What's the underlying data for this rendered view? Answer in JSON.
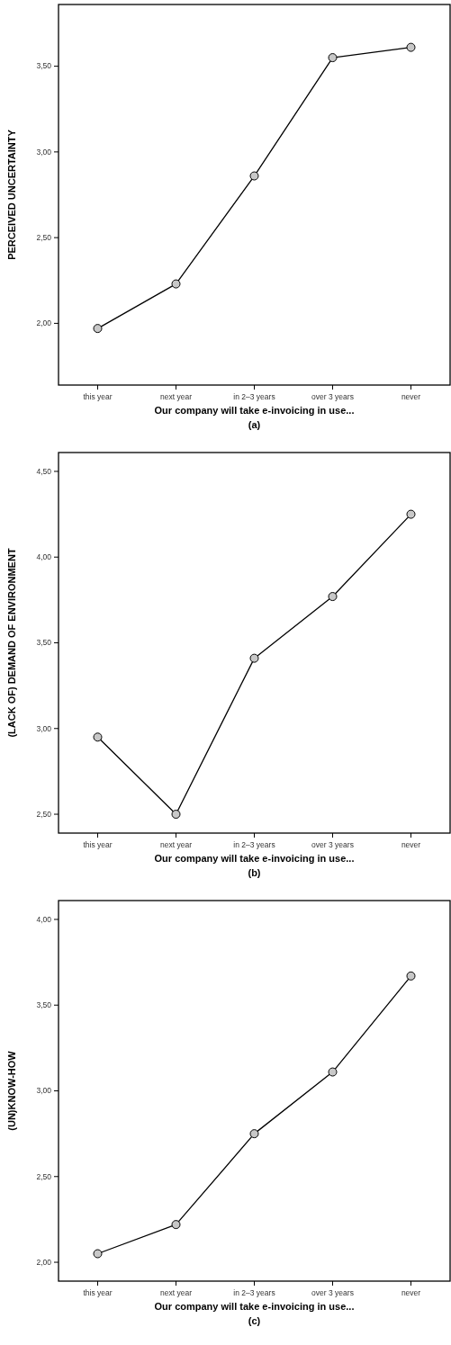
{
  "chart_data": [
    {
      "type": "line",
      "xlabel": "Our company will take e-invoicing in use...",
      "ylabel": "PERCEIVED UNCERTAINTY",
      "annotations": [
        "(a)"
      ],
      "categories": [
        "this year",
        "next year",
        "in 2–3 years",
        "over 3 years",
        "never"
      ],
      "marker": "circle",
      "line_style": "solid",
      "series": [
        {
          "color": "#000000",
          "values": [
            1.97,
            2.23,
            2.86,
            3.55,
            3.61
          ]
        }
      ],
      "ylim": [
        1.64,
        3.86
      ],
      "yticks": [
        {
          "value": 2,
          "label": "2,00"
        },
        {
          "value": 2.5,
          "label": "2,50"
        },
        {
          "value": 3,
          "label": "3,00"
        },
        {
          "value": 3.5,
          "label": "3,50"
        }
      ]
    },
    {
      "type": "line",
      "xlabel": "Our company will take e-invoicing in use...",
      "ylabel": "(LACK OF) DEMAND OF ENVIRONMENT",
      "annotations": [
        "(b)"
      ],
      "categories": [
        "this year",
        "next year",
        "in 2–3 years",
        "over 3 years",
        "never"
      ],
      "marker": "circle",
      "line_style": "solid",
      "series": [
        {
          "color": "#000000",
          "values": [
            2.95,
            2.5,
            3.41,
            3.77,
            4.25
          ]
        }
      ],
      "ylim": [
        2.39,
        4.61
      ],
      "yticks": [
        {
          "value": 2.5,
          "label": "2,50"
        },
        {
          "value": 3,
          "label": "3,00"
        },
        {
          "value": 3.5,
          "label": "3,50"
        },
        {
          "value": 4,
          "label": "4,00"
        },
        {
          "value": 4.5,
          "label": "4,50"
        }
      ]
    },
    {
      "type": "line",
      "xlabel": "Our company will take e-invoicing in use...",
      "ylabel": "(UN)KNOW-HOW",
      "annotations": [
        "(c)"
      ],
      "categories": [
        "this year",
        "next year",
        "in 2–3 years",
        "over 3 years",
        "never"
      ],
      "marker": "circle",
      "line_style": "solid",
      "series": [
        {
          "color": "#000000",
          "values": [
            2.05,
            2.22,
            2.75,
            3.11,
            3.67
          ]
        }
      ],
      "ylim": [
        1.89,
        4.11
      ],
      "yticks": [
        {
          "value": 2,
          "label": "2,00"
        },
        {
          "value": 2.5,
          "label": "2,50"
        },
        {
          "value": 3,
          "label": "3,00"
        },
        {
          "value": 3.5,
          "label": "3,50"
        },
        {
          "value": 4,
          "label": "4,00"
        }
      ]
    }
  ]
}
